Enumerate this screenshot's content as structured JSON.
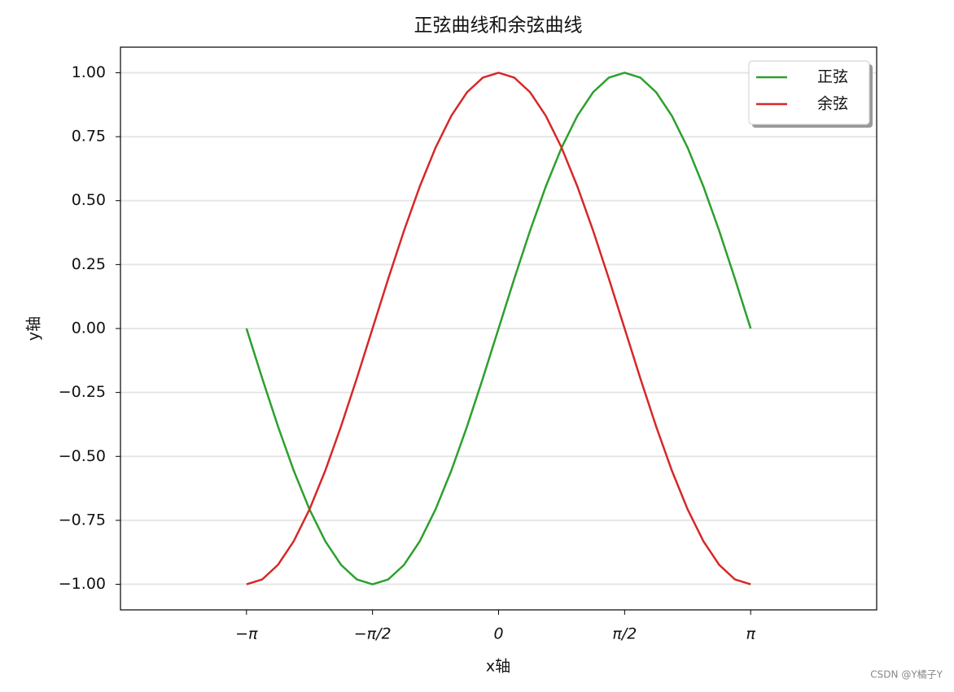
{
  "chart_data": {
    "type": "line",
    "title": "正弦曲线和余弦曲线",
    "x_label": "x轴",
    "y_label": "y轴",
    "x": [
      -3.1416,
      -2.9452,
      -2.7489,
      -2.5525,
      -2.3562,
      -2.1598,
      -1.9635,
      -1.7671,
      -1.5708,
      -1.3744,
      -1.1781,
      -0.9817,
      -0.7854,
      -0.589,
      -0.3927,
      -0.1963,
      0,
      0.1963,
      0.3927,
      0.589,
      0.7854,
      0.9817,
      1.1781,
      1.3744,
      1.5708,
      1.7671,
      1.9635,
      2.1598,
      2.3562,
      2.5525,
      2.7489,
      2.9452,
      3.1416
    ],
    "series": [
      {
        "name": "正弦",
        "color": "#2ca02c",
        "values": [
          0,
          -0.1951,
          -0.3827,
          -0.5556,
          -0.7071,
          -0.8315,
          -0.9239,
          -0.9808,
          -1,
          -0.9808,
          -0.9239,
          -0.8315,
          -0.7071,
          -0.5556,
          -0.3827,
          -0.1951,
          0,
          0.1951,
          0.3827,
          0.5556,
          0.7071,
          0.8315,
          0.9239,
          0.9808,
          1,
          0.9808,
          0.9239,
          0.8315,
          0.7071,
          0.5556,
          0.3827,
          0.1951,
          0
        ]
      },
      {
        "name": "余弦",
        "color": "#d62728",
        "values": [
          -1,
          -0.9808,
          -0.9239,
          -0.8315,
          -0.7071,
          -0.5556,
          -0.3827,
          -0.1951,
          0,
          0.1951,
          0.3827,
          0.5556,
          0.7071,
          0.8315,
          0.9239,
          0.9808,
          1,
          0.9808,
          0.9239,
          0.8315,
          0.7071,
          0.5556,
          0.3827,
          0.1951,
          0,
          -0.1951,
          -0.3827,
          -0.5556,
          -0.7071,
          -0.8315,
          -0.9239,
          -0.9808,
          -1
        ]
      }
    ],
    "xlim": [
      -4.712,
      4.712
    ],
    "xticks": [
      {
        "value": -3.1416,
        "label": "−π"
      },
      {
        "value": -1.5708,
        "label": "−π/2"
      },
      0,
      {
        "value": 1.5708,
        "label": "π/2"
      },
      {
        "value": 3.1416,
        "label": "π"
      }
    ],
    "ylim": [
      -1.1,
      1.1
    ],
    "yticks": [
      {
        "value": -1,
        "label": "−1.00"
      },
      {
        "value": -0.75,
        "label": "−0.75"
      },
      {
        "value": -0.5,
        "label": "−0.50"
      },
      {
        "value": -0.25,
        "label": "−0.25"
      },
      {
        "value": 0,
        "label": "0.00"
      },
      0.25,
      {
        "value": 0.5,
        "label": "0.50"
      },
      0.75,
      {
        "value": 1,
        "label": "1.00"
      }
    ],
    "grid": "y",
    "legend": "upper right",
    "watermark": "CSDN @Y橘子Y"
  }
}
